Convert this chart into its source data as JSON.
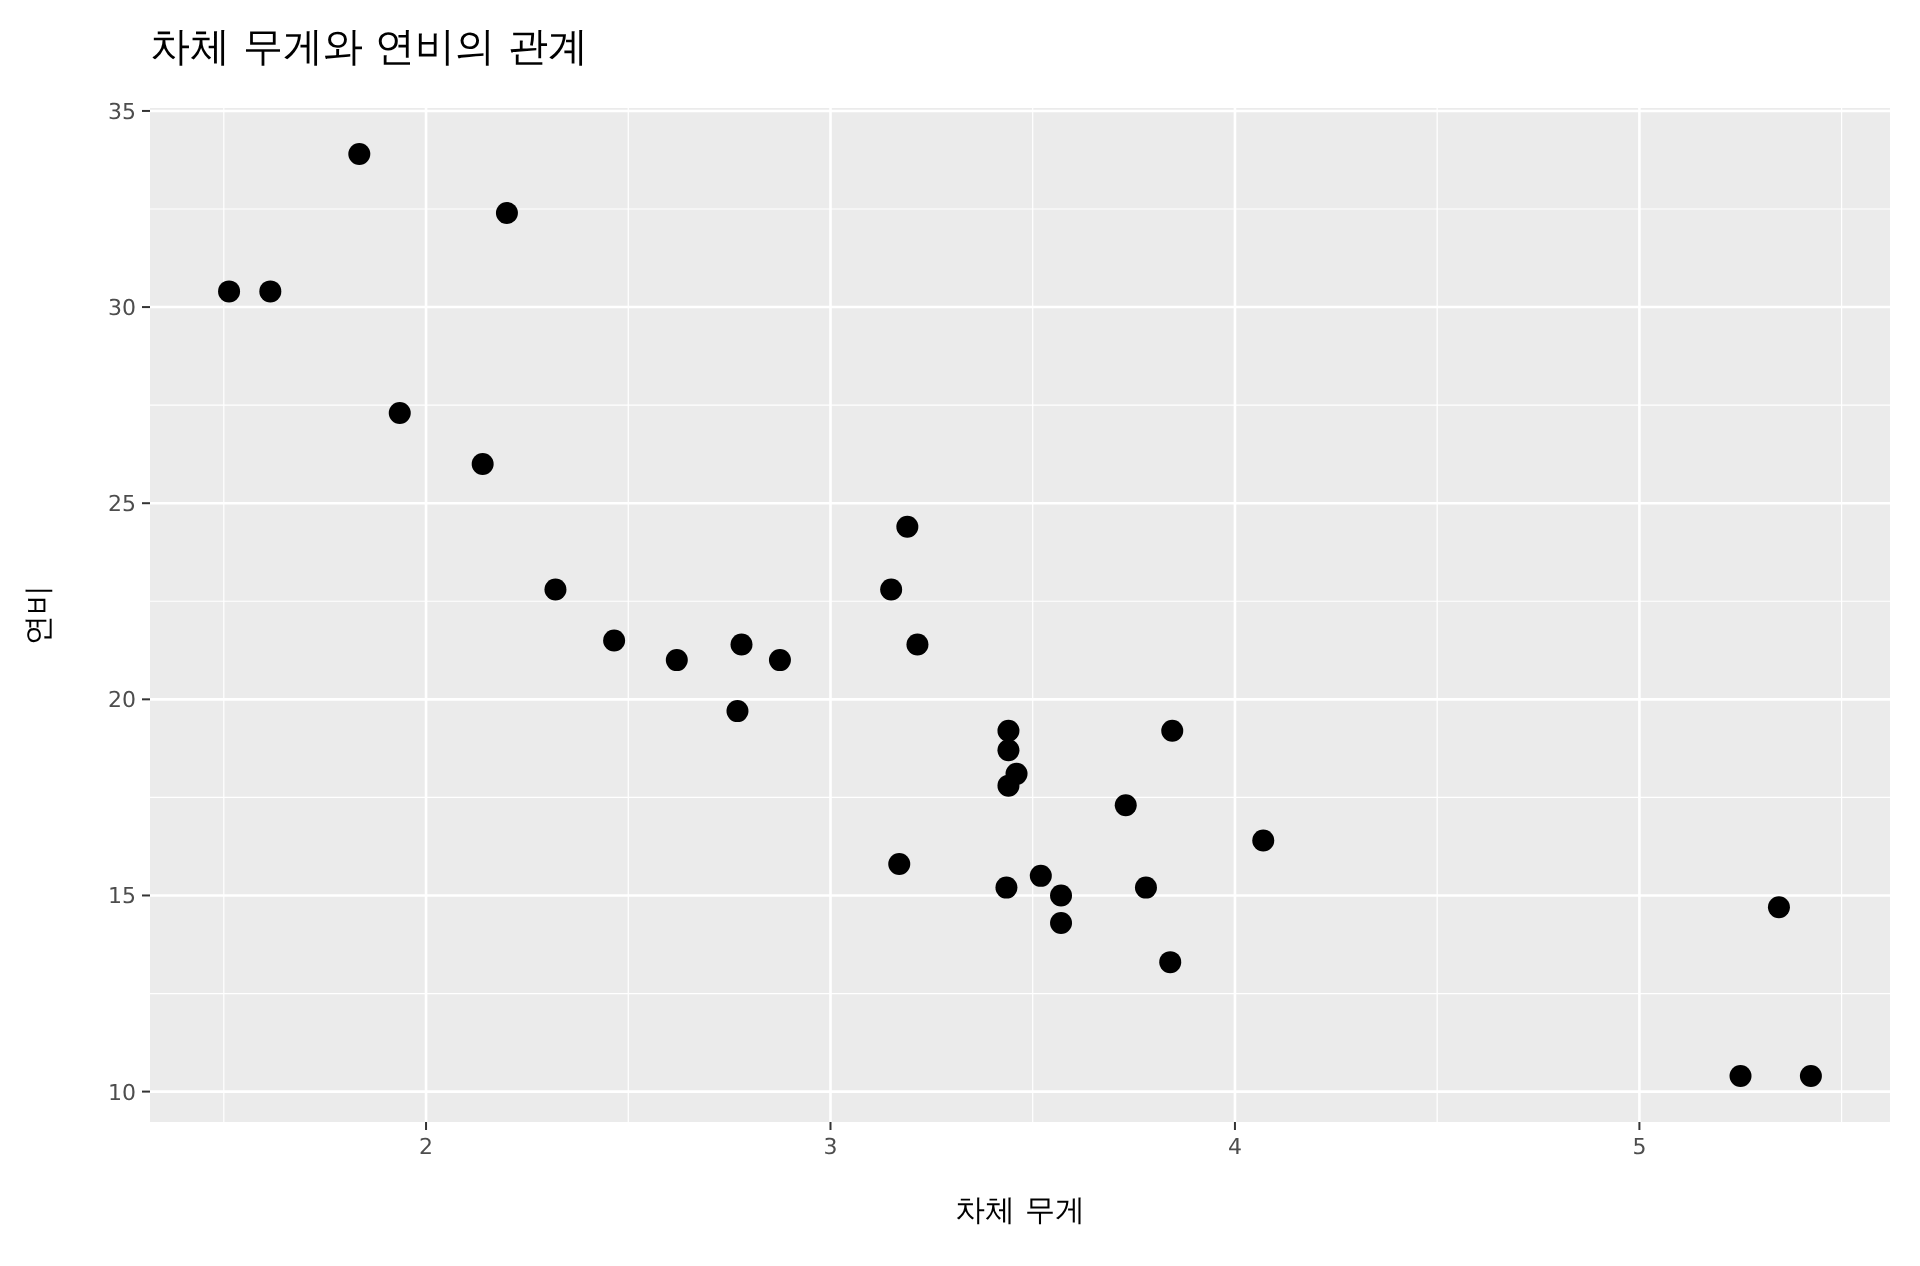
{
  "chart_data": {
    "type": "scatter",
    "title": "차체 무게와 연비의 관계",
    "xlabel": "차체 무게",
    "ylabel": "연비",
    "x": [
      2.62,
      2.875,
      2.32,
      3.215,
      3.44,
      3.46,
      3.57,
      3.19,
      3.15,
      3.44,
      3.44,
      4.07,
      3.73,
      3.78,
      5.25,
      5.424,
      5.345,
      2.2,
      1.615,
      1.835,
      2.465,
      3.52,
      3.435,
      3.84,
      3.845,
      1.935,
      2.14,
      1.513,
      3.17,
      2.77,
      3.57,
      2.78
    ],
    "values": [
      21.0,
      21.0,
      22.8,
      21.4,
      18.7,
      18.1,
      14.3,
      24.4,
      22.8,
      19.2,
      17.8,
      16.4,
      17.3,
      15.2,
      10.4,
      10.4,
      14.7,
      32.4,
      30.4,
      33.9,
      21.5,
      15.5,
      15.2,
      13.3,
      19.2,
      27.3,
      26.0,
      30.4,
      15.8,
      19.7,
      15.0,
      21.4
    ],
    "color": "#000000",
    "marker": "circle",
    "xlim": [
      1.3175,
      5.6196
    ],
    "ylim": [
      9.225,
      35.075
    ],
    "xticks": [
      2,
      3,
      4,
      5
    ],
    "yticks": [
      10,
      15,
      20,
      25,
      30,
      35
    ],
    "grid": true
  }
}
